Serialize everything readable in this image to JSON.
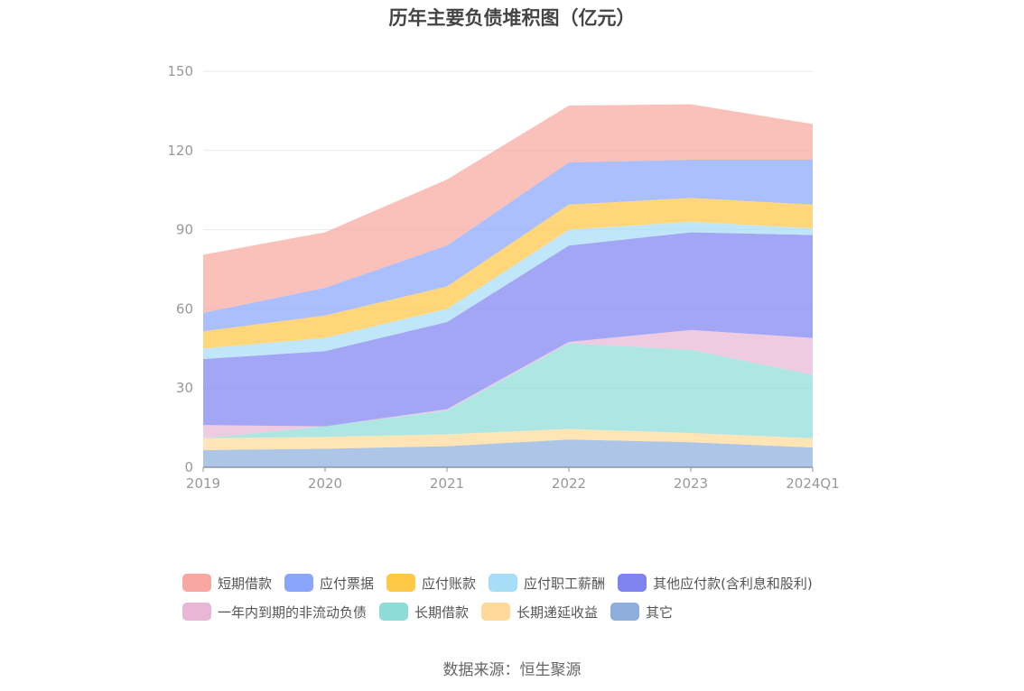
{
  "chart_data": {
    "type": "area",
    "stacked": true,
    "title": "历年主要负债堆积图（亿元）",
    "categories": [
      "2019",
      "2020",
      "2021",
      "2022",
      "2023",
      "2024Q1"
    ],
    "y_ticks": [
      "0",
      "30",
      "60",
      "90",
      "120",
      "150"
    ],
    "ylim": [
      0,
      150
    ],
    "grid": true,
    "legend_position": "bottom",
    "series": [
      {
        "name": "其它",
        "color": "#8eaedc",
        "values": [
          6.5,
          7.0,
          8.0,
          10.5,
          9.5,
          7.5
        ]
      },
      {
        "name": "长期递延收益",
        "color": "#ffd99a",
        "values": [
          4.5,
          4.5,
          4.5,
          4.0,
          3.5,
          3.5
        ]
      },
      {
        "name": "长期借款",
        "color": "#8edcd8",
        "values": [
          0.0,
          4.0,
          9.0,
          32.5,
          31.5,
          24.0
        ]
      },
      {
        "name": "一年内到期的非流动负债",
        "color": "#e8b7d6",
        "values": [
          5.0,
          0.0,
          0.5,
          0.5,
          7.5,
          14.0
        ]
      },
      {
        "name": "其他应付款(含利息和股利)",
        "color": "#7f84f0",
        "values": [
          25.0,
          28.5,
          33.0,
          36.5,
          37.0,
          39.0
        ]
      },
      {
        "name": "应付职工薪酬",
        "color": "#a8ddf7",
        "values": [
          4.0,
          5.0,
          5.0,
          6.0,
          4.0,
          2.5
        ]
      },
      {
        "name": "应付账款",
        "color": "#ffc847",
        "values": [
          6.5,
          8.5,
          8.5,
          9.5,
          9.0,
          9.0
        ]
      },
      {
        "name": "应付票据",
        "color": "#8aa6fb",
        "values": [
          7.0,
          10.5,
          15.5,
          16.0,
          14.5,
          17.0
        ]
      },
      {
        "name": "短期借款",
        "color": "#f8a8a0",
        "values": [
          22.0,
          21.0,
          25.0,
          21.5,
          21.0,
          13.5
        ]
      }
    ]
  },
  "legend": {
    "row1": [
      {
        "label": "短期借款",
        "color": "#f8a8a0"
      },
      {
        "label": "应付票据",
        "color": "#8aa6fb"
      },
      {
        "label": "应付账款",
        "color": "#ffc847"
      },
      {
        "label": "应付职工薪酬",
        "color": "#a8ddf7"
      },
      {
        "label": "其他应付款(含利息和股利)",
        "color": "#7f84f0"
      }
    ],
    "row2": [
      {
        "label": "一年内到期的非流动负债",
        "color": "#e8b7d6"
      },
      {
        "label": "长期借款",
        "color": "#8edcd8"
      },
      {
        "label": "长期递延收益",
        "color": "#ffd99a"
      },
      {
        "label": "其它",
        "color": "#8eaedc"
      }
    ]
  },
  "source": "数据来源：恒生聚源"
}
